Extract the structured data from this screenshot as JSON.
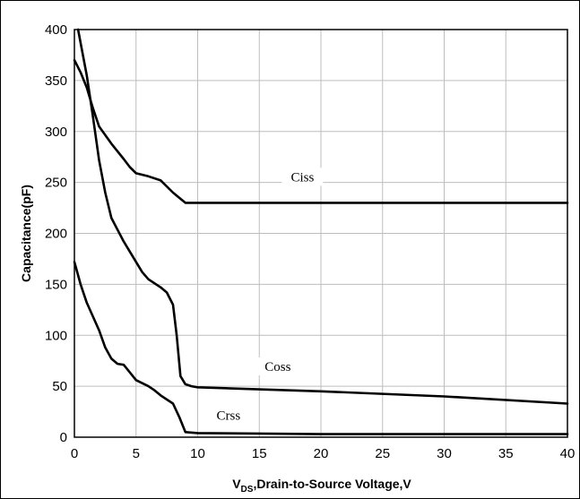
{
  "chart_data": {
    "type": "line",
    "xlabel": {
      "main": "V",
      "sub": "DS",
      "rest": ",Drain-to-Source Voltage,V"
    },
    "ylabel": "Capacitance(pF)",
    "xlim": [
      0,
      40
    ],
    "ylim": [
      0,
      400
    ],
    "xticks": [
      0,
      5,
      10,
      15,
      20,
      25,
      30,
      35,
      40
    ],
    "yticks": [
      0,
      50,
      100,
      150,
      200,
      250,
      300,
      350,
      400
    ],
    "grid": true,
    "series": [
      {
        "name": "Ciss",
        "x": [
          0,
          0.5,
          1,
          1.5,
          2,
          3,
          4,
          4.5,
          5,
          6,
          7,
          8,
          9,
          10,
          20,
          30,
          40
        ],
        "y": [
          370,
          358,
          343,
          323,
          305,
          288,
          273,
          265,
          259,
          256,
          252,
          240,
          230,
          230,
          230,
          230,
          230
        ]
      },
      {
        "name": "Coss",
        "x": [
          0.3,
          1,
          1.5,
          2,
          2.5,
          3,
          4,
          5,
          5.5,
          6,
          7,
          7.5,
          8,
          8.3,
          8.6,
          9,
          9.5,
          10,
          20,
          30,
          40
        ],
        "y": [
          400,
          355,
          315,
          272,
          240,
          215,
          192,
          172,
          162,
          155,
          147,
          142,
          130,
          100,
          60,
          52,
          50,
          49,
          45,
          40,
          33
        ]
      },
      {
        "name": "Crss",
        "x": [
          0,
          0.5,
          1,
          2,
          2.5,
          3,
          3.5,
          4,
          5,
          6,
          6.5,
          7,
          8,
          8.5,
          9,
          10,
          20,
          30,
          40
        ],
        "y": [
          172,
          150,
          132,
          105,
          88,
          77,
          72,
          71,
          56,
          50,
          46,
          41,
          33,
          20,
          5,
          4,
          3,
          3,
          3
        ]
      }
    ],
    "annotations": [
      {
        "text": "Ciss",
        "x": 18.5,
        "y": 252
      },
      {
        "text": "Coss",
        "x": 16.5,
        "y": 66
      },
      {
        "text": "Crss",
        "x": 12.5,
        "y": 18
      }
    ]
  }
}
